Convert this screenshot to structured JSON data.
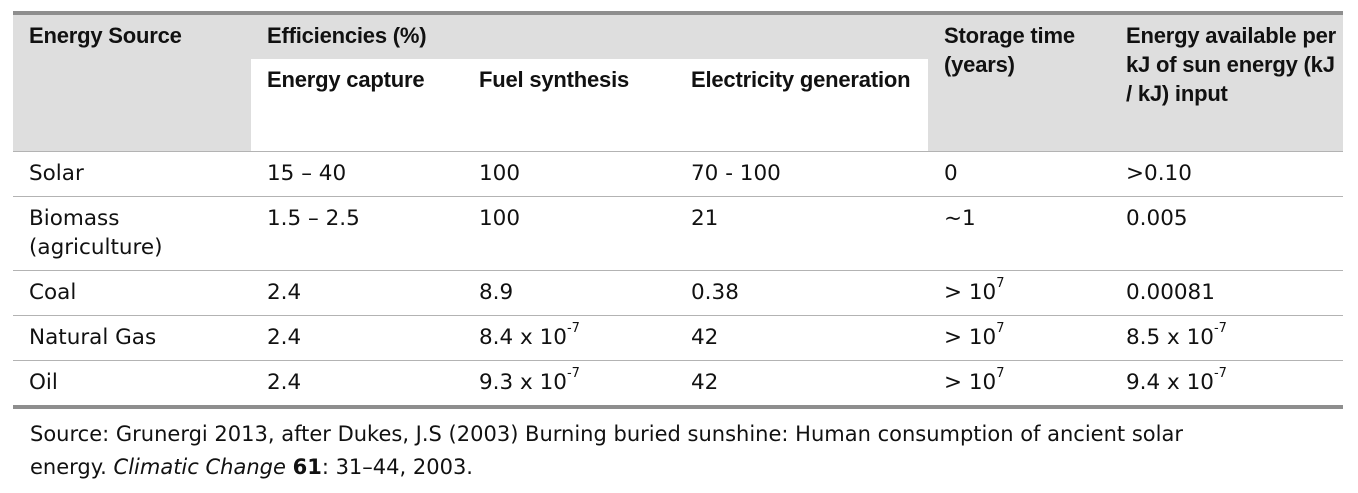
{
  "header": {
    "energy_source": "Energy Source",
    "efficiencies": "Efficiencies (%)",
    "energy_capture": "Energy capture",
    "fuel_synthesis": "Fuel synthesis",
    "electricity_generation": "Electricity generation",
    "storage_time": "Storage time (years)",
    "energy_available": "Energy available per kJ of sun energy (kJ / kJ) input"
  },
  "rows": [
    {
      "source": "Solar",
      "capture": "15 – 40",
      "synthesis": "100",
      "electricity": "70 - 100",
      "storage": "0",
      "available": ">0.10"
    },
    {
      "source": "Biomass (agriculture)",
      "capture": "1.5 – 2.5",
      "synthesis": "100",
      "electricity": "21",
      "storage": "~1",
      "available": "0.005"
    },
    {
      "source": "Coal",
      "capture": "2.4",
      "synthesis": "8.9",
      "electricity": "0.38",
      "storage": "> 10",
      "storage_exp": "7",
      "available": "0.00081"
    },
    {
      "source": "Natural Gas",
      "capture": "2.4",
      "synthesis": "8.4 x 10",
      "synthesis_exp": "-7",
      "electricity": "42",
      "storage": "> 10",
      "storage_exp": "7",
      "available": "8.5 x 10",
      "available_exp": "-7"
    },
    {
      "source": "Oil",
      "capture": "2.4",
      "synthesis": "9.3 x 10",
      "synthesis_exp": "-7",
      "electricity": "42",
      "storage": "> 10",
      "storage_exp": "7",
      "available": "9.4 x 10",
      "available_exp": "-7"
    }
  ],
  "source_note": {
    "prefix": "Source: Grunergi 2013, after Dukes, J.S (2003) Burning buried sunshine: Human consumption of ancient solar energy. ",
    "journal": "Climatic Change",
    "volume": "61",
    "suffix": ": 31–44, 2003."
  }
}
